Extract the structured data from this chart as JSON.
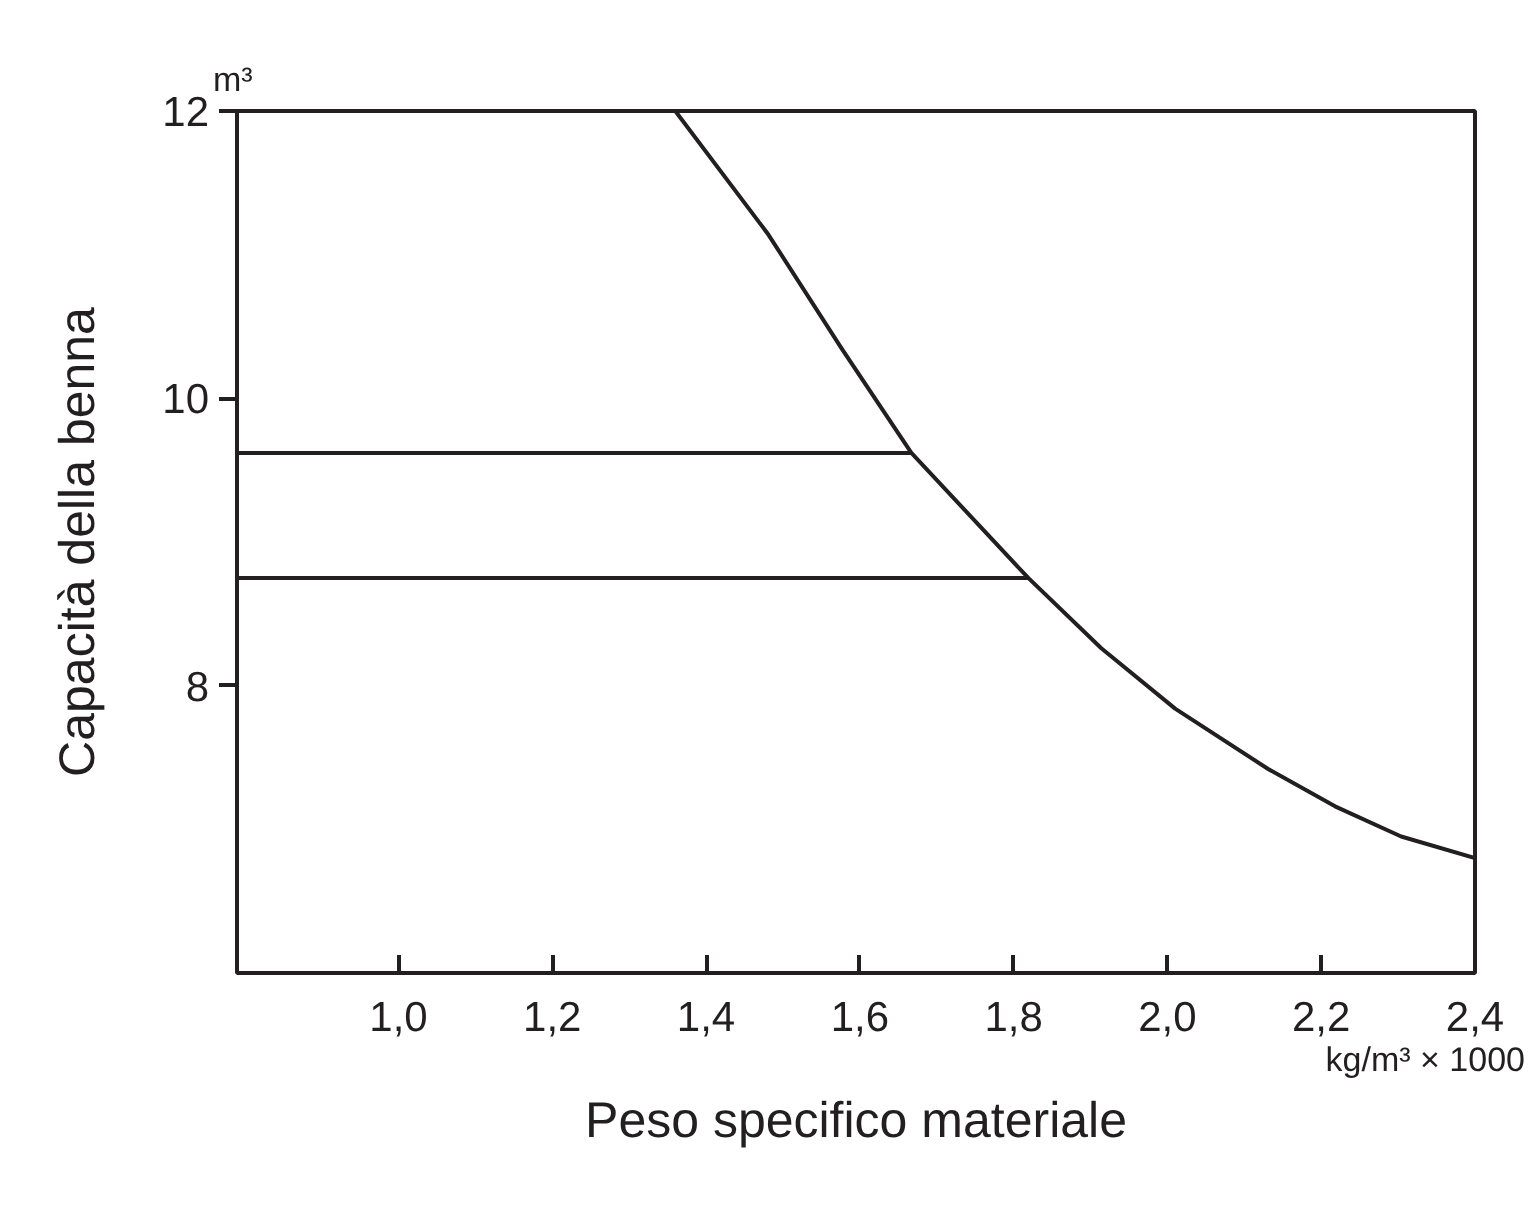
{
  "chart_data": {
    "type": "line",
    "xlabel": "Peso specifico materiale",
    "ylabel": "Capacità della benna",
    "annotations": [
      "m³",
      "kg/m³ × 1000"
    ],
    "xlim": [
      0.79,
      2.4
    ],
    "ylim": [
      6,
      12
    ],
    "xticks": [
      {
        "value": 1.0,
        "label": "1,0"
      },
      {
        "value": 1.2,
        "label": "1,2"
      },
      {
        "value": 1.4,
        "label": "1,4"
      },
      {
        "value": 1.6,
        "label": "1,6"
      },
      {
        "value": 1.8,
        "label": "1,8"
      },
      {
        "value": 2.0,
        "label": "2,0"
      },
      {
        "value": 2.2,
        "label": "2,2"
      },
      {
        "value": 2.4,
        "label": "2,4"
      }
    ],
    "yticks": [
      8,
      10,
      12
    ],
    "grid": false,
    "marker": "none",
    "line_style": "solid",
    "series": [
      {
        "color": "#231f20",
        "x": [
          1.36,
          1.481,
          1.576,
          1.667,
          1.819,
          1.914,
          2.01,
          2.131,
          2.218,
          2.304,
          2.4
        ],
        "values": [
          12.0,
          11.14,
          10.35,
          9.62,
          8.75,
          8.26,
          7.84,
          7.42,
          7.16,
          6.95,
          6.8
        ]
      },
      {
        "color": "#231f20",
        "x": [
          0.79,
          1.667
        ],
        "values": [
          9.62,
          9.62
        ]
      },
      {
        "color": "#231f20",
        "x": [
          0.79,
          1.819
        ],
        "values": [
          8.75,
          8.75
        ]
      }
    ]
  }
}
